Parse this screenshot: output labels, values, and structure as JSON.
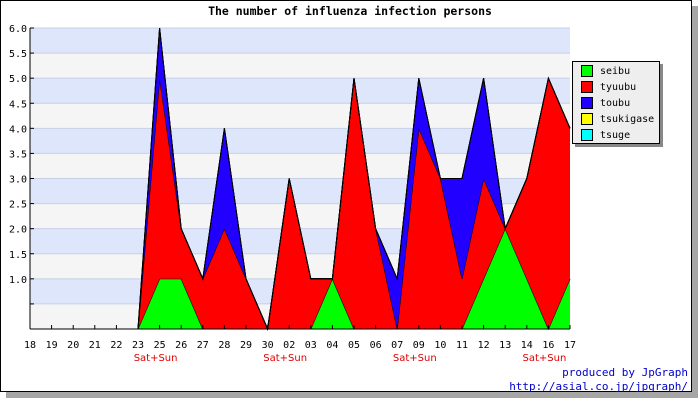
{
  "chart_data": {
    "type": "area",
    "stacked": true,
    "title": "The number of influenza infection persons",
    "categories": [
      "18",
      "19",
      "20",
      "21",
      "22",
      "23",
      "25",
      "26",
      "27",
      "28",
      "29",
      "30",
      "02",
      "03",
      "04",
      "05",
      "06",
      "07",
      "09",
      "10",
      "11",
      "12",
      "13",
      "14",
      "16",
      "17"
    ],
    "weekend_labels": [
      {
        "category_index": 6,
        "text": "Sat+Sun"
      },
      {
        "category_index": 12,
        "text": "Sat+Sun"
      },
      {
        "category_index": 18,
        "text": "Sat+Sun"
      },
      {
        "category_index": 24,
        "text": "Sat+Sun"
      }
    ],
    "yticks": [
      "",
      "1.0",
      "1.5",
      "2.0",
      "2.5",
      "3.0",
      "3.5",
      "4.0",
      "4.5",
      "5.0",
      "5.5",
      "6.0"
    ],
    "ylim": [
      0,
      6
    ],
    "grid": true,
    "legend_position": "right",
    "series": [
      {
        "name": "seibu",
        "color": "#00ff00",
        "values": [
          0,
          0,
          0,
          0,
          0,
          0,
          1,
          1,
          0,
          0,
          0,
          0,
          0,
          0,
          1,
          0,
          0,
          0,
          0,
          0,
          0,
          1,
          2,
          1,
          0,
          1
        ]
      },
      {
        "name": "tyuubu",
        "color": "#ff0000",
        "values": [
          0,
          0,
          0,
          0,
          0,
          0,
          4,
          1,
          1,
          2,
          1,
          0,
          3,
          1,
          0,
          5,
          2,
          0,
          4,
          3,
          1,
          2,
          0,
          2,
          5,
          3
        ]
      },
      {
        "name": "toubu",
        "color": "#2200ff",
        "values": [
          0,
          0,
          0,
          0,
          0,
          0,
          1,
          0,
          0,
          2,
          0,
          0,
          0,
          0,
          0,
          0,
          0,
          1,
          1,
          0,
          2,
          2,
          0,
          0,
          0,
          0
        ]
      },
      {
        "name": "tsukigase",
        "color": "#ffff00",
        "values": [
          0,
          0,
          0,
          0,
          0,
          0,
          0,
          0,
          0,
          0,
          0,
          0,
          0,
          0,
          0,
          0,
          0,
          0,
          0,
          0,
          0,
          0,
          0,
          0,
          0,
          0
        ]
      },
      {
        "name": "tsuge",
        "color": "#00ffff",
        "values": [
          0,
          0,
          0,
          0,
          0,
          0,
          0,
          0,
          0,
          0,
          0,
          0,
          0,
          0,
          0,
          0,
          0,
          0,
          0,
          0,
          0,
          0,
          0,
          0,
          0,
          0
        ]
      }
    ]
  },
  "credit": {
    "line1": "produced by JpGraph",
    "line2": "http://asial.co.jp/jpgraph/"
  }
}
